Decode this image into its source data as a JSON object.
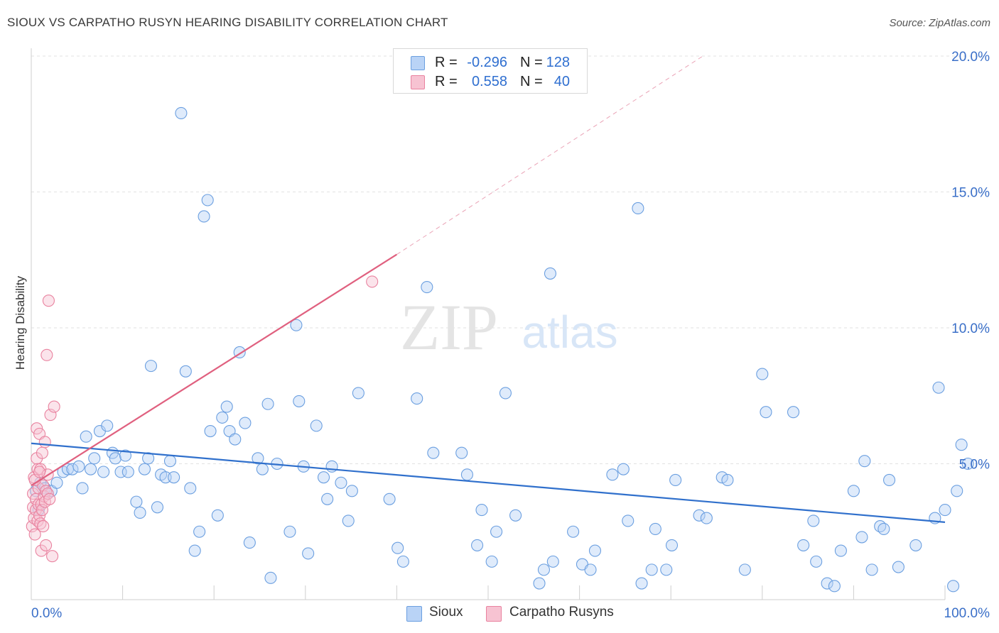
{
  "header": {
    "title": "SIOUX VS CARPATHO RUSYN HEARING DISABILITY CORRELATION CHART",
    "source": "Source: ZipAtlas.com"
  },
  "watermark": {
    "zip": "ZIP",
    "atlas": "atlas"
  },
  "legend": {
    "rows": [
      {
        "r_label": "R =",
        "r_value": "-0.296",
        "n_label": "N =",
        "n_value": "128",
        "color": "#6b9fe0",
        "fill": "#b9d3f6"
      },
      {
        "r_label": "R =",
        "r_value": "0.558",
        "n_label": "N =",
        "n_value": "40",
        "color": "#e9829f",
        "fill": "#f7c3d2"
      }
    ]
  },
  "bottom_legend": [
    {
      "label": "Sioux",
      "color": "#6b9fe0",
      "fill": "#b9d3f6"
    },
    {
      "label": "Carpatho Rusyns",
      "color": "#e9829f",
      "fill": "#f7c3d2"
    }
  ],
  "chart_data": {
    "type": "scatter",
    "title": "SIOUX VS CARPATHO RUSYN HEARING DISABILITY CORRELATION CHART",
    "xlabel": "",
    "ylabel": "Hearing Disability",
    "xlim": [
      0,
      100
    ],
    "ylim": [
      0,
      20
    ],
    "x_tick_labels": [
      "0.0%",
      "100.0%"
    ],
    "y_ticks": [
      5,
      10,
      15,
      20
    ],
    "y_tick_labels": [
      "5.0%",
      "10.0%",
      "15.0%",
      "20.0%"
    ],
    "grid": true,
    "colors": {
      "sioux": "#3070cc",
      "carpatho": "#e0607f",
      "sioux_point": "#6b9fe0",
      "carpatho_point": "#e9829f",
      "axis_label": "#3a6fc8"
    },
    "series": [
      {
        "name": "Sioux",
        "r": -0.296,
        "n": 128,
        "trend": {
          "x0": 0,
          "y0": 5.75,
          "x1": 100,
          "y1": 2.85
        },
        "points": [
          [
            0.5,
            4.0
          ],
          [
            0.8,
            3.3
          ],
          [
            1.0,
            4.3
          ],
          [
            1.5,
            4.1
          ],
          [
            1.8,
            3.9
          ],
          [
            2.2,
            4.0
          ],
          [
            2.8,
            4.3
          ],
          [
            3.5,
            4.7
          ],
          [
            4.0,
            4.8
          ],
          [
            4.5,
            4.8
          ],
          [
            5.2,
            4.9
          ],
          [
            5.6,
            4.1
          ],
          [
            6.0,
            6.0
          ],
          [
            6.5,
            4.8
          ],
          [
            6.9,
            5.2
          ],
          [
            7.5,
            6.2
          ],
          [
            7.9,
            4.7
          ],
          [
            8.3,
            6.4
          ],
          [
            8.9,
            5.4
          ],
          [
            9.2,
            5.2
          ],
          [
            9.8,
            4.7
          ],
          [
            10.3,
            5.3
          ],
          [
            10.6,
            4.7
          ],
          [
            11.5,
            3.6
          ],
          [
            11.9,
            3.2
          ],
          [
            12.4,
            4.8
          ],
          [
            12.8,
            5.2
          ],
          [
            13.1,
            8.6
          ],
          [
            13.8,
            3.4
          ],
          [
            14.2,
            4.6
          ],
          [
            14.7,
            4.5
          ],
          [
            15.2,
            5.1
          ],
          [
            15.6,
            4.5
          ],
          [
            16.4,
            17.9
          ],
          [
            16.9,
            8.4
          ],
          [
            17.4,
            4.1
          ],
          [
            17.9,
            1.8
          ],
          [
            18.4,
            2.5
          ],
          [
            18.9,
            14.1
          ],
          [
            19.3,
            14.7
          ],
          [
            19.6,
            6.2
          ],
          [
            20.4,
            3.1
          ],
          [
            20.9,
            6.7
          ],
          [
            21.4,
            7.1
          ],
          [
            21.7,
            6.2
          ],
          [
            22.3,
            5.9
          ],
          [
            22.8,
            9.1
          ],
          [
            23.4,
            6.5
          ],
          [
            23.9,
            2.1
          ],
          [
            24.8,
            5.2
          ],
          [
            25.3,
            4.8
          ],
          [
            25.9,
            7.2
          ],
          [
            26.2,
            0.8
          ],
          [
            26.9,
            5.0
          ],
          [
            28.3,
            2.5
          ],
          [
            29.0,
            10.1
          ],
          [
            29.3,
            7.3
          ],
          [
            29.8,
            4.9
          ],
          [
            30.3,
            1.7
          ],
          [
            31.2,
            6.4
          ],
          [
            32.0,
            4.5
          ],
          [
            32.4,
            3.7
          ],
          [
            32.9,
            4.9
          ],
          [
            33.9,
            4.3
          ],
          [
            34.7,
            2.9
          ],
          [
            35.1,
            4.0
          ],
          [
            35.8,
            7.6
          ],
          [
            39.2,
            3.7
          ],
          [
            40.1,
            1.9
          ],
          [
            40.7,
            1.4
          ],
          [
            42.2,
            7.4
          ],
          [
            43.3,
            11.5
          ],
          [
            44.0,
            5.4
          ],
          [
            47.1,
            5.4
          ],
          [
            47.7,
            4.6
          ],
          [
            48.8,
            2.0
          ],
          [
            49.3,
            3.3
          ],
          [
            50.4,
            1.4
          ],
          [
            50.9,
            2.5
          ],
          [
            51.9,
            7.6
          ],
          [
            53.0,
            3.1
          ],
          [
            55.6,
            0.6
          ],
          [
            56.1,
            1.1
          ],
          [
            56.8,
            12.0
          ],
          [
            57.1,
            1.4
          ],
          [
            59.3,
            2.5
          ],
          [
            60.3,
            1.3
          ],
          [
            61.2,
            1.1
          ],
          [
            61.7,
            1.8
          ],
          [
            63.6,
            4.6
          ],
          [
            64.8,
            4.8
          ],
          [
            65.3,
            2.9
          ],
          [
            66.4,
            14.4
          ],
          [
            66.8,
            0.6
          ],
          [
            67.9,
            1.1
          ],
          [
            68.3,
            2.6
          ],
          [
            69.5,
            1.1
          ],
          [
            70.1,
            2.0
          ],
          [
            70.5,
            4.4
          ],
          [
            73.1,
            3.1
          ],
          [
            73.9,
            3.0
          ],
          [
            75.6,
            4.5
          ],
          [
            76.2,
            4.4
          ],
          [
            78.1,
            1.1
          ],
          [
            80.0,
            8.3
          ],
          [
            80.4,
            6.9
          ],
          [
            83.4,
            6.9
          ],
          [
            84.5,
            2.0
          ],
          [
            85.6,
            2.9
          ],
          [
            85.9,
            1.4
          ],
          [
            87.1,
            0.6
          ],
          [
            87.9,
            0.5
          ],
          [
            88.6,
            1.8
          ],
          [
            90.0,
            4.0
          ],
          [
            90.9,
            2.3
          ],
          [
            91.2,
            5.1
          ],
          [
            92.0,
            1.1
          ],
          [
            92.9,
            2.7
          ],
          [
            93.3,
            2.6
          ],
          [
            93.9,
            4.4
          ],
          [
            94.9,
            1.2
          ],
          [
            96.8,
            2.0
          ],
          [
            98.9,
            3.0
          ],
          [
            99.3,
            7.8
          ],
          [
            100.0,
            3.3
          ],
          [
            100.9,
            0.5
          ],
          [
            101.3,
            4.0
          ],
          [
            101.8,
            5.7
          ],
          [
            102.5,
            5.0
          ]
        ]
      },
      {
        "name": "Carpatho Rusyns",
        "r": 0.558,
        "n": 40,
        "trend": {
          "x0": 0,
          "y0": 4.2,
          "x1": 40,
          "y1": 12.7
        },
        "trend_extended": {
          "x0": 40,
          "y0": 12.7,
          "x1": 73.5,
          "y1": 20.0
        },
        "points": [
          [
            0.1,
            2.7
          ],
          [
            0.2,
            3.4
          ],
          [
            0.2,
            3.9
          ],
          [
            0.3,
            4.5
          ],
          [
            0.3,
            3.0
          ],
          [
            0.4,
            2.4
          ],
          [
            0.5,
            3.7
          ],
          [
            0.5,
            3.3
          ],
          [
            0.6,
            5.2
          ],
          [
            0.6,
            6.3
          ],
          [
            0.7,
            2.9
          ],
          [
            0.7,
            4.8
          ],
          [
            0.8,
            3.5
          ],
          [
            0.8,
            4.1
          ],
          [
            0.9,
            6.1
          ],
          [
            0.9,
            3.1
          ],
          [
            1.0,
            2.8
          ],
          [
            1.0,
            4.8
          ],
          [
            1.1,
            3.5
          ],
          [
            1.1,
            1.8
          ],
          [
            1.2,
            3.3
          ],
          [
            1.2,
            5.4
          ],
          [
            1.3,
            2.7
          ],
          [
            1.3,
            4.2
          ],
          [
            1.4,
            3.8
          ],
          [
            1.5,
            5.8
          ],
          [
            1.5,
            3.6
          ],
          [
            1.6,
            4.0
          ],
          [
            1.6,
            2.0
          ],
          [
            1.7,
            9.0
          ],
          [
            1.8,
            4.6
          ],
          [
            1.8,
            3.9
          ],
          [
            1.9,
            11.0
          ],
          [
            2.0,
            3.7
          ],
          [
            2.1,
            6.8
          ],
          [
            2.3,
            1.6
          ],
          [
            2.5,
            7.1
          ],
          [
            0.4,
            4.4
          ],
          [
            0.9,
            4.7
          ],
          [
            37.3,
            11.7
          ]
        ]
      }
    ]
  }
}
